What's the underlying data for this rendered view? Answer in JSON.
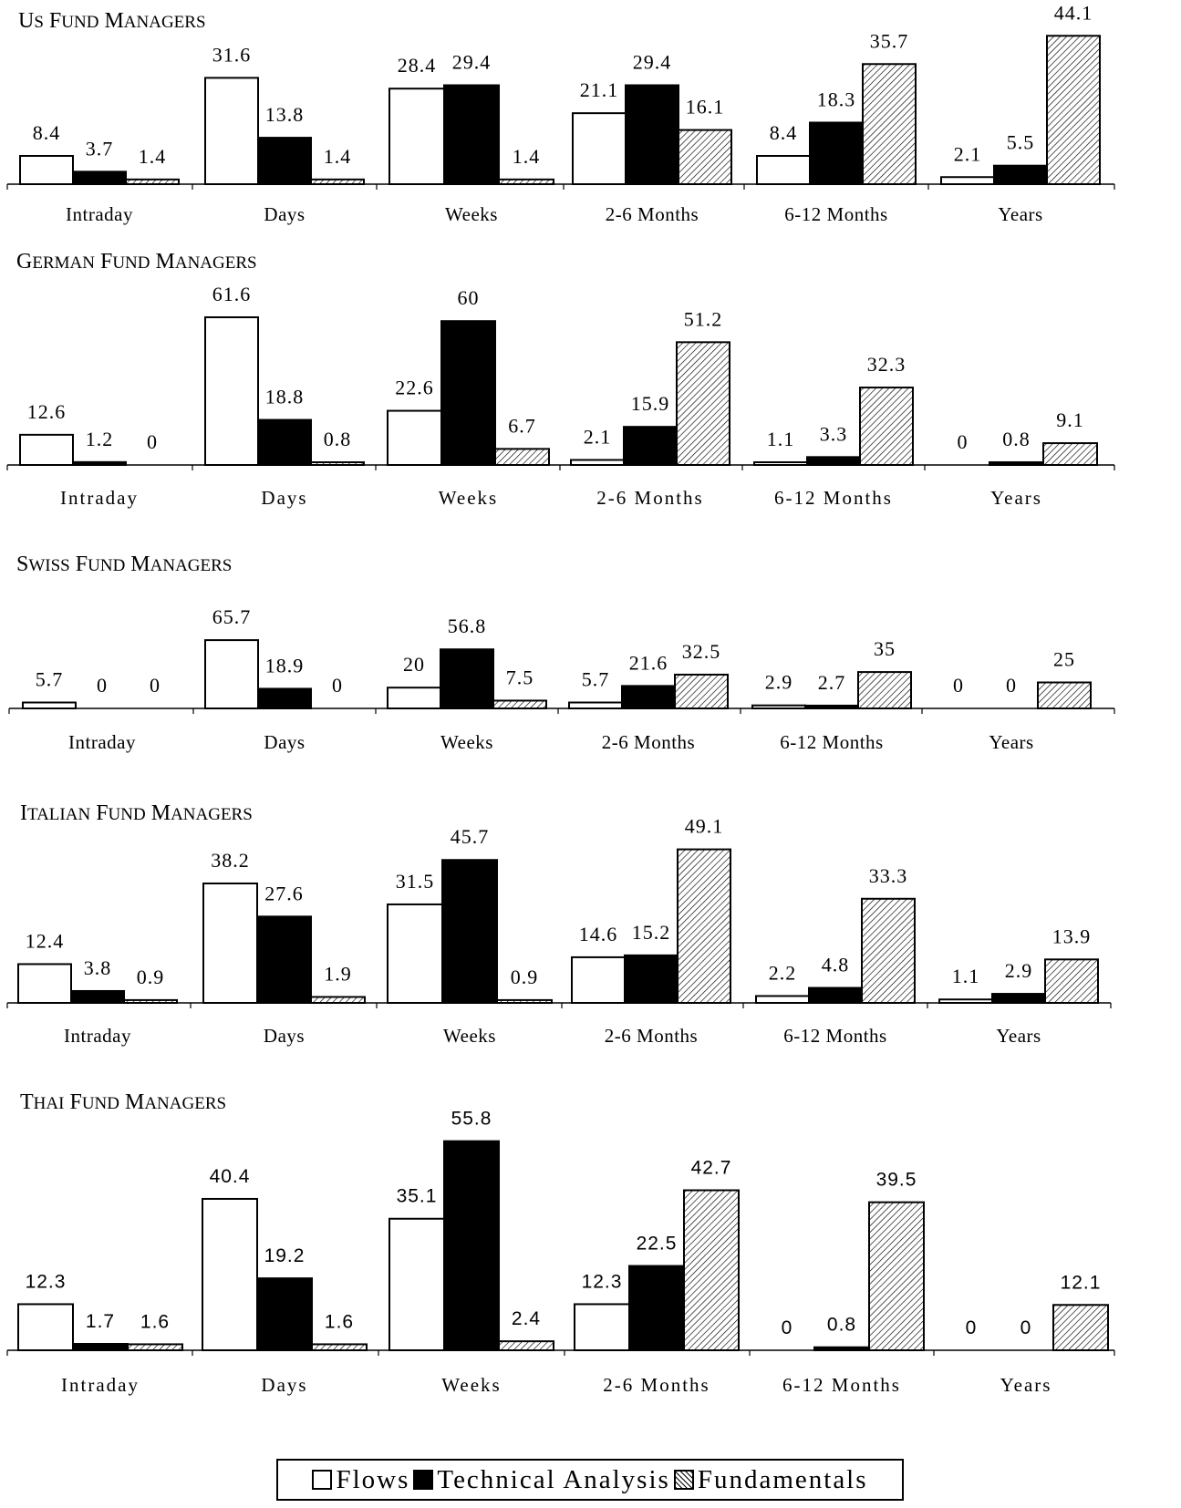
{
  "chart_data": [
    {
      "type": "bar",
      "title": "US Fund Managers",
      "categories": [
        "Intraday",
        "Days",
        "Weeks",
        "2-6 Months",
        "6-12 Months",
        "Years"
      ],
      "series": [
        {
          "name": "Flows",
          "values": [
            8.4,
            31.6,
            28.4,
            21.1,
            8.4,
            2.1
          ]
        },
        {
          "name": "Technical Analysis",
          "values": [
            3.7,
            13.8,
            29.4,
            29.4,
            18.3,
            5.5
          ]
        },
        {
          "name": "Fundamentals",
          "values": [
            1.4,
            1.4,
            1.4,
            16.1,
            35.7,
            44.1
          ]
        }
      ]
    },
    {
      "type": "bar",
      "title": "German Fund Managers",
      "categories": [
        "Intraday",
        "Days",
        "Weeks",
        "2-6 Months",
        "6-12 Months",
        "Years"
      ],
      "series": [
        {
          "name": "Flows",
          "values": [
            12.6,
            61.6,
            22.6,
            2.1,
            1.1,
            0
          ]
        },
        {
          "name": "Technical Analysis",
          "values": [
            1.2,
            18.8,
            60,
            15.9,
            3.3,
            0.8
          ]
        },
        {
          "name": "Fundamentals",
          "values": [
            0,
            0.8,
            6.7,
            51.2,
            32.3,
            9.1
          ]
        }
      ]
    },
    {
      "type": "bar",
      "title": "Swiss Fund Managers",
      "categories": [
        "Intraday",
        "Days",
        "Weeks",
        "2-6 Months",
        "6-12 Months",
        "Years"
      ],
      "series": [
        {
          "name": "Flows",
          "values": [
            5.7,
            65.7,
            20,
            5.7,
            2.9,
            0
          ]
        },
        {
          "name": "Technical Analysis",
          "values": [
            0,
            18.9,
            56.8,
            21.6,
            2.7,
            0
          ]
        },
        {
          "name": "Fundamentals",
          "values": [
            0,
            0,
            7.5,
            32.5,
            35,
            25
          ]
        }
      ]
    },
    {
      "type": "bar",
      "title": "Italian Fund Managers",
      "categories": [
        "Intraday",
        "Days",
        "Weeks",
        "2-6 Months",
        "6-12 Months",
        "Years"
      ],
      "series": [
        {
          "name": "Flows",
          "values": [
            12.4,
            38.2,
            31.5,
            14.6,
            2.2,
            1.1
          ]
        },
        {
          "name": "Technical Analysis",
          "values": [
            3.8,
            27.6,
            45.7,
            15.2,
            4.8,
            2.9
          ]
        },
        {
          "name": "Fundamentals",
          "values": [
            0.9,
            1.9,
            0.9,
            49.1,
            33.3,
            13.9
          ]
        }
      ]
    },
    {
      "type": "bar",
      "title": "Thai Fund Managers",
      "categories": [
        "Intraday",
        "Days",
        "Weeks",
        "2-6 Months",
        "6-12 Months",
        "Years"
      ],
      "series": [
        {
          "name": "Flows",
          "values": [
            12.3,
            40.4,
            35.1,
            12.3,
            0,
            0
          ]
        },
        {
          "name": "Technical Analysis",
          "values": [
            1.7,
            19.2,
            55.8,
            22.5,
            0.8,
            0
          ]
        },
        {
          "name": "Fundamentals",
          "values": [
            1.6,
            1.6,
            2.4,
            42.7,
            39.5,
            12.1
          ]
        }
      ]
    }
  ],
  "legend": {
    "items": [
      {
        "label": "Flows",
        "fill": "#ffffff"
      },
      {
        "label": "Technical Analysis",
        "fill": "#000000"
      },
      {
        "label": "Fundamentals",
        "fill": "hatched"
      }
    ],
    "placement": "bottom-center"
  }
}
